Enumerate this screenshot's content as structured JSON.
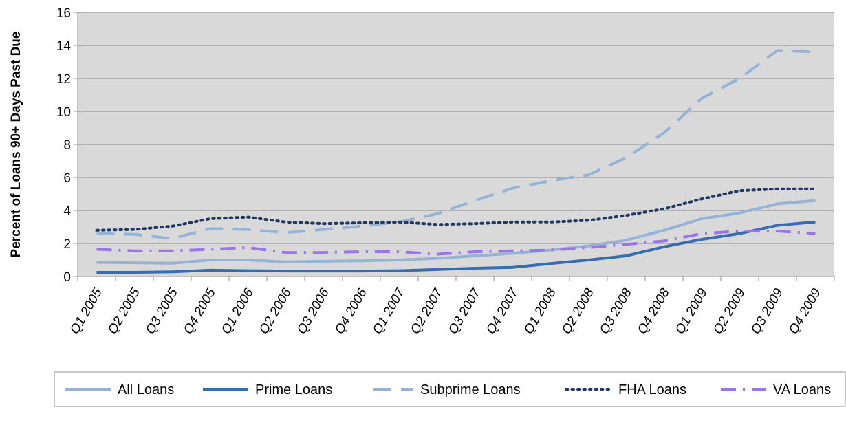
{
  "chart_data": {
    "type": "line",
    "title": "",
    "xlabel": "",
    "ylabel": "Percent of Loans 90+ Days Past Due",
    "ylim": [
      0,
      16
    ],
    "yticks": [
      0,
      2,
      4,
      6,
      8,
      10,
      12,
      14,
      16
    ],
    "grid": true,
    "legend_position": "bottom",
    "categories": [
      "Q1 2005",
      "Q2 2005",
      "Q3 2005",
      "Q4 2005",
      "Q1 2006",
      "Q2 2006",
      "Q3 2006",
      "Q4 2006",
      "Q1 2007",
      "Q2 2007",
      "Q3 2007",
      "Q4 2007",
      "Q1 2008",
      "Q2 2008",
      "Q3 2008",
      "Q4 2008",
      "Q1 2009",
      "Q2 2009",
      "Q3 2009",
      "Q4 2009"
    ],
    "series": [
      {
        "name": "All Loans",
        "color": "#95b3d7",
        "dash": "solid",
        "values": [
          0.85,
          0.83,
          0.8,
          1.0,
          1.0,
          0.88,
          0.92,
          0.95,
          1.0,
          1.1,
          1.25,
          1.4,
          1.6,
          1.85,
          2.2,
          2.8,
          3.5,
          3.85,
          4.4,
          4.6
        ]
      },
      {
        "name": "Prime Loans",
        "color": "#366cb0",
        "dash": "solid",
        "values": [
          0.25,
          0.25,
          0.28,
          0.38,
          0.35,
          0.33,
          0.33,
          0.33,
          0.35,
          0.42,
          0.5,
          0.55,
          0.78,
          1.0,
          1.25,
          1.8,
          2.25,
          2.6,
          3.1,
          3.3
        ]
      },
      {
        "name": "Subprime Loans",
        "color": "#95b3d7",
        "dash": "long-dash",
        "values": [
          2.6,
          2.55,
          2.3,
          2.9,
          2.85,
          2.65,
          2.85,
          3.05,
          3.3,
          3.8,
          4.6,
          5.35,
          5.8,
          6.15,
          7.2,
          8.7,
          10.8,
          12.0,
          13.7,
          13.6
        ]
      },
      {
        "name": "FHA Loans",
        "color": "#1f3864",
        "dash": "dot",
        "values": [
          2.8,
          2.85,
          3.05,
          3.5,
          3.6,
          3.3,
          3.2,
          3.25,
          3.3,
          3.15,
          3.2,
          3.3,
          3.3,
          3.4,
          3.7,
          4.1,
          4.7,
          5.2,
          5.3,
          5.3
        ]
      },
      {
        "name": "VA Loans",
        "color": "#9b74e8",
        "dash": "dash-dot",
        "values": [
          1.65,
          1.55,
          1.55,
          1.65,
          1.75,
          1.45,
          1.45,
          1.5,
          1.5,
          1.35,
          1.5,
          1.55,
          1.6,
          1.75,
          1.95,
          2.15,
          2.6,
          2.75,
          2.75,
          2.6
        ]
      }
    ]
  }
}
